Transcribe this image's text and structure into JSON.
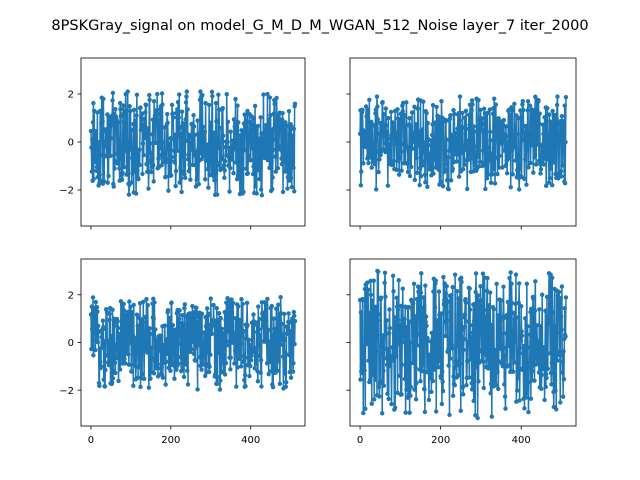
{
  "suptitle": "8PSKGray_signal on model_G_M_D_M_WGAN_512_Noise layer_7 iter_2000",
  "colors": {
    "series": "#1f77b4",
    "axes": "#000000",
    "background": "#ffffff"
  },
  "chart_data": [
    {
      "type": "line",
      "marker": "circle",
      "panel": "top-left",
      "n_points": 512,
      "x_range": [
        0,
        511
      ],
      "xlim": [
        -25,
        536
      ],
      "ylim": [
        -3.5,
        3.5
      ],
      "xticks": [
        0,
        200,
        400
      ],
      "xtick_labels_visible": false,
      "yticks": [
        -2,
        0,
        2
      ],
      "yticklabels": [
        "−2",
        "0",
        "2"
      ],
      "grid": false,
      "y_min": -2.25,
      "y_max": 2.1
    },
    {
      "type": "line",
      "marker": "circle",
      "panel": "top-right",
      "n_points": 512,
      "x_range": [
        0,
        511
      ],
      "xlim": [
        -25,
        536
      ],
      "ylim": [
        -3.5,
        3.5
      ],
      "xticks": [
        0,
        200,
        400
      ],
      "xtick_labels_visible": false,
      "yticks": [
        -2,
        0,
        2
      ],
      "ytick_labels_visible": false,
      "grid": false,
      "y_min": -2.0,
      "y_max": 1.9
    },
    {
      "type": "line",
      "marker": "circle",
      "panel": "bottom-left",
      "n_points": 512,
      "x_range": [
        0,
        511
      ],
      "xlim": [
        -25,
        536
      ],
      "ylim": [
        -3.5,
        3.5
      ],
      "xticks": [
        0,
        200,
        400
      ],
      "xticklabels": [
        "0",
        "200",
        "400"
      ],
      "yticks": [
        -2,
        0,
        2
      ],
      "yticklabels": [
        "−2",
        "0",
        "2"
      ],
      "grid": false,
      "y_min": -2.0,
      "y_max": 1.9
    },
    {
      "type": "line",
      "marker": "circle",
      "panel": "bottom-right",
      "n_points": 512,
      "x_range": [
        0,
        511
      ],
      "xlim": [
        -25,
        536
      ],
      "ylim": [
        -3.5,
        3.5
      ],
      "xticks": [
        0,
        200,
        400
      ],
      "xticklabels": [
        "0",
        "200",
        "400"
      ],
      "yticks": [
        -2,
        0,
        2
      ],
      "ytick_labels_visible": false,
      "grid": false,
      "y_min": -3.2,
      "y_max": 3.0
    }
  ]
}
